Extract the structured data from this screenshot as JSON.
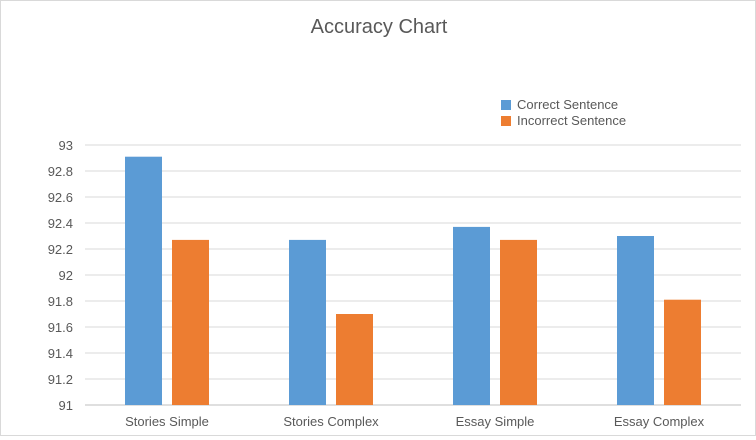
{
  "chart_data": {
    "type": "bar",
    "title": "Accuracy Chart",
    "xlabel": "",
    "ylabel": "",
    "categories": [
      "Stories Simple",
      "Stories Complex",
      "Essay Simple",
      "Essay Complex"
    ],
    "series": [
      {
        "name": "Correct Sentence",
        "color": "#5b9bd5",
        "values": [
          92.91,
          92.27,
          92.37,
          92.3
        ]
      },
      {
        "name": "Incorrect Sentence",
        "color": "#ed7d31",
        "values": [
          92.27,
          91.7,
          92.27,
          91.81
        ]
      }
    ],
    "ylim": [
      91,
      93
    ],
    "yticks": [
      "91",
      "91.2",
      "91.4",
      "91.6",
      "91.8",
      "92",
      "92.2",
      "92.4",
      "92.6",
      "92.8",
      "93"
    ],
    "grid": true,
    "legend": "top-right"
  }
}
